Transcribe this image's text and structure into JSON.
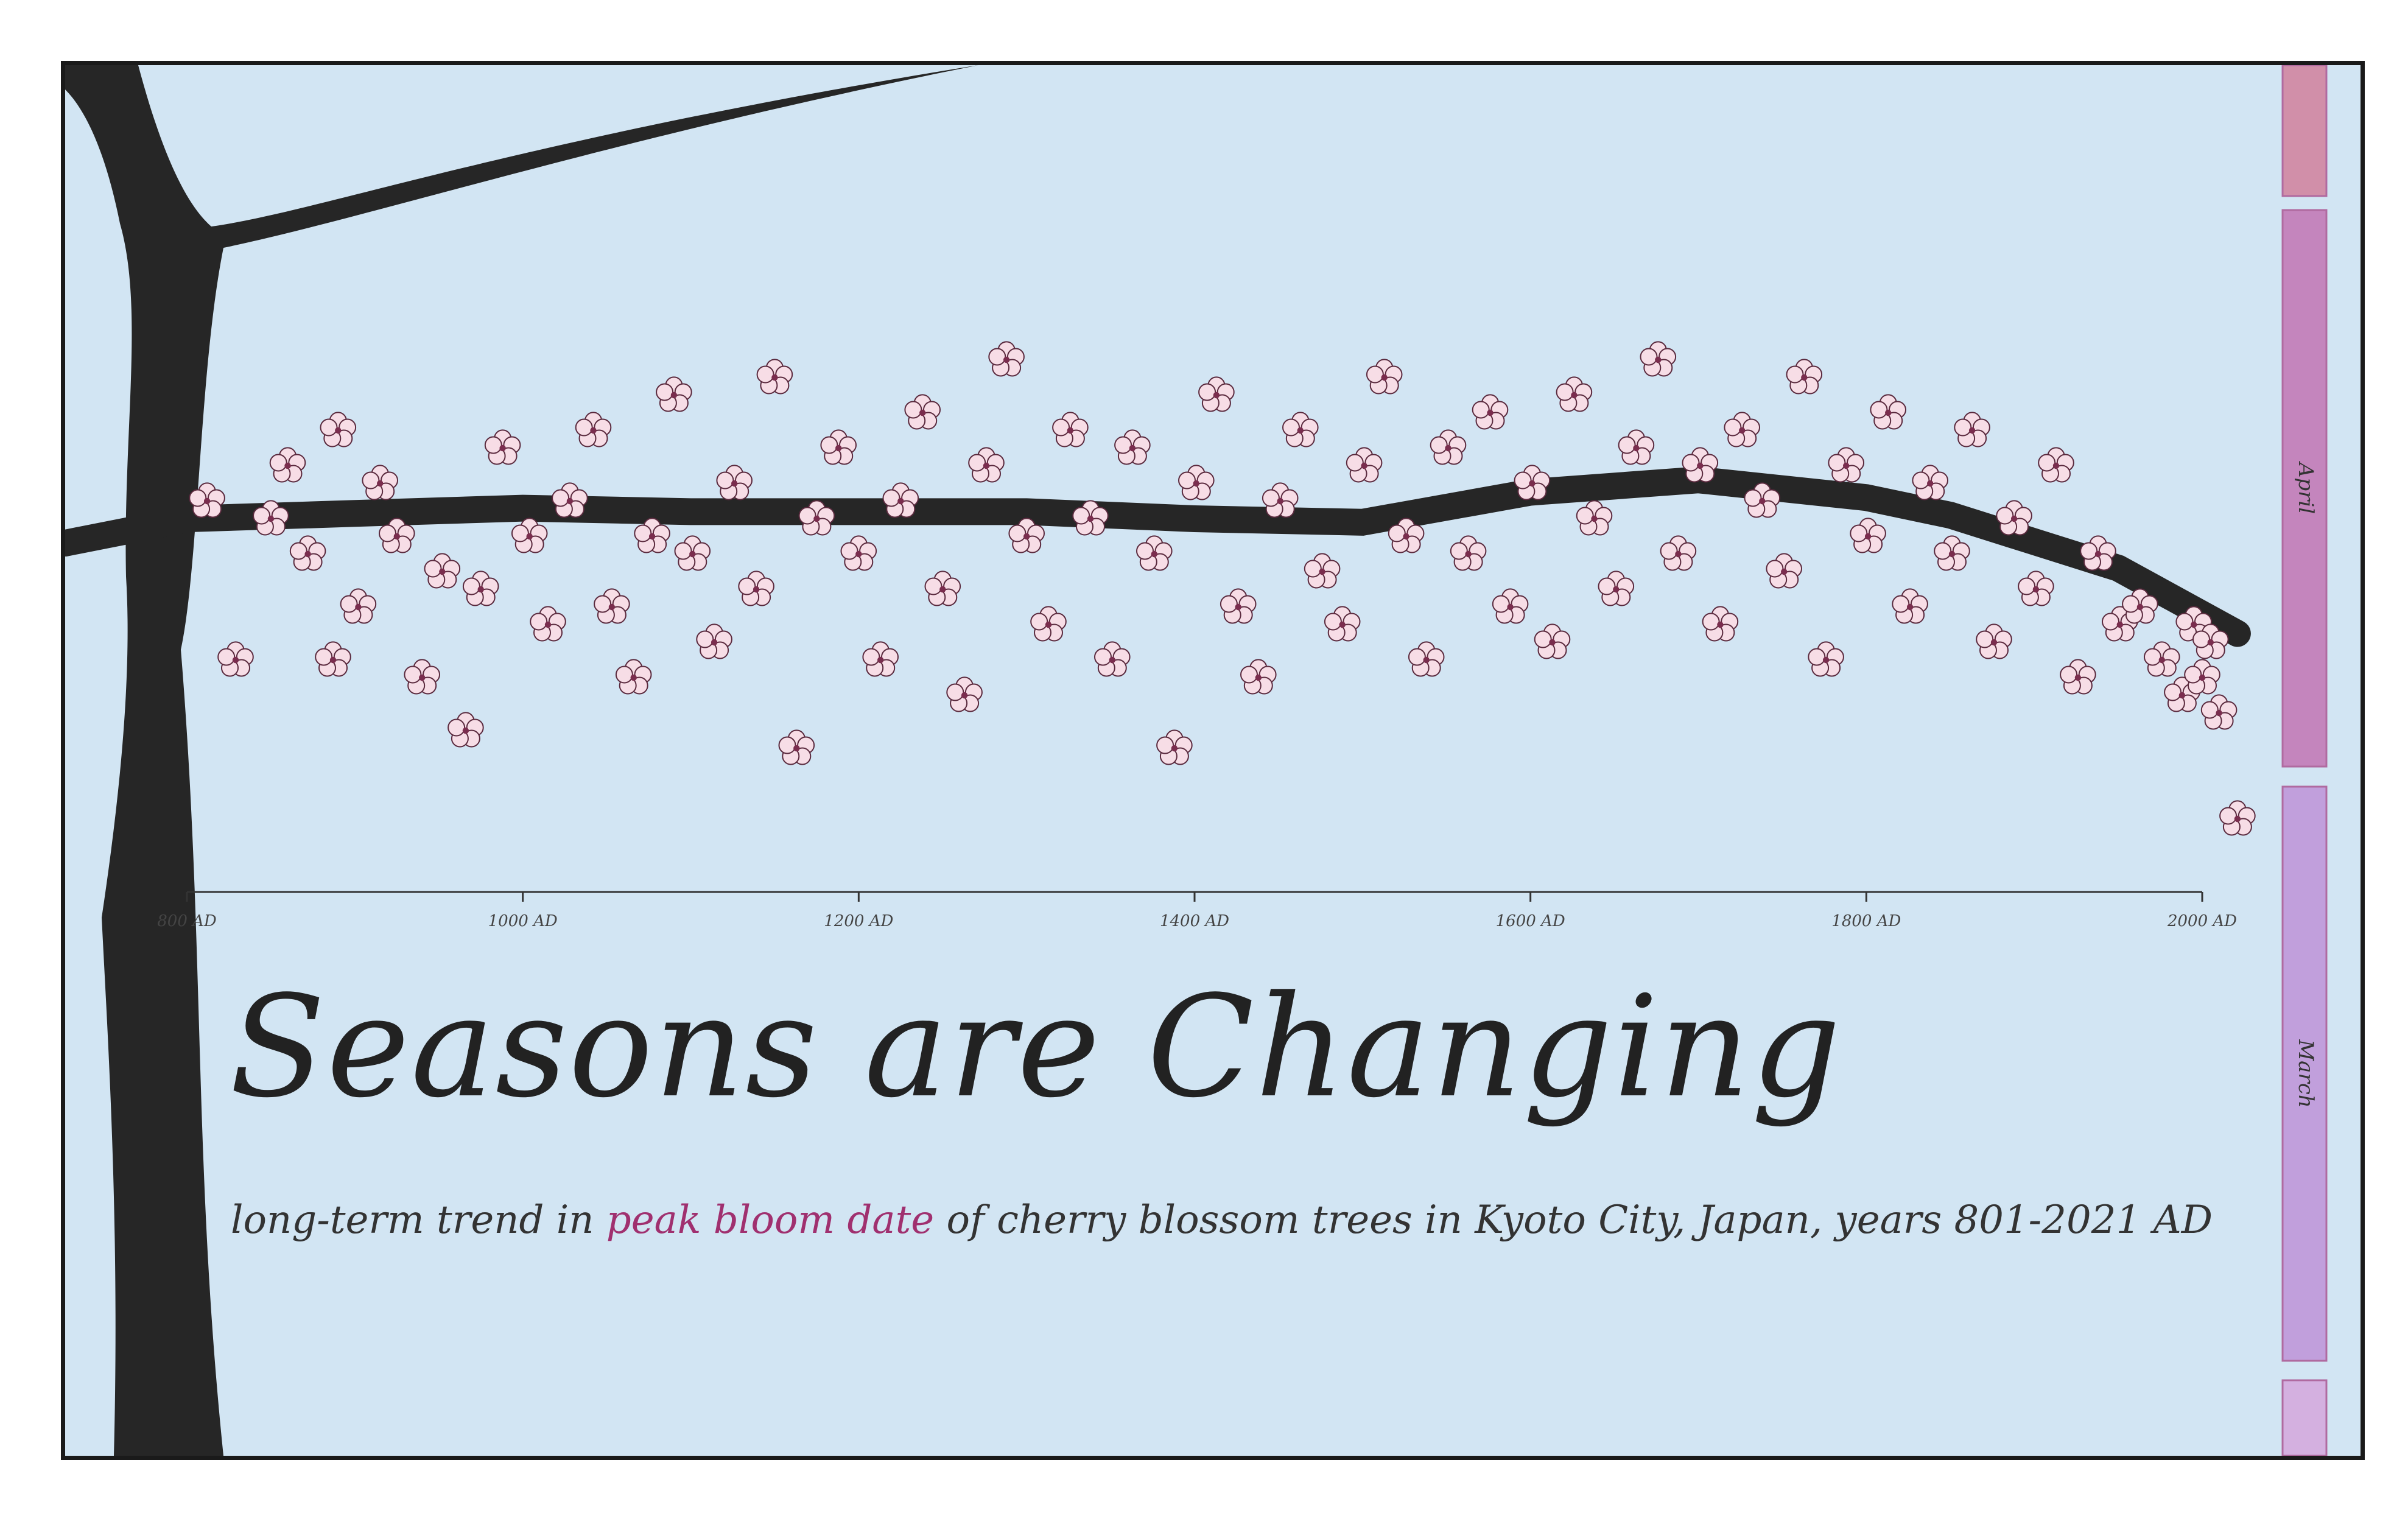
{
  "chart_data": {
    "type": "scatter",
    "title": "Seasons are Changing",
    "subtitle": {
      "before": "long-term trend in ",
      "highlight": "peak bloom date",
      "after": " of cherry blossom trees in Kyoto City, Japan, years 801-2021 AD"
    },
    "x_ticks": [
      "800 AD",
      "1000 AD",
      "1200 AD",
      "1400 AD",
      "1600 AD",
      "1800 AD",
      "2000 AD"
    ],
    "x_tick_values": [
      800,
      1000,
      1200,
      1400,
      1600,
      1800,
      2000
    ],
    "xlim": [
      800,
      2021
    ],
    "ylim": [
      70,
      140
    ],
    "y_note": "day of year; earlier dates lower on chart",
    "month_bands": [
      {
        "label": "",
        "from": 120,
        "to": 140,
        "color": "#d18fa9"
      },
      {
        "label": "April",
        "from": 91,
        "to": 120,
        "color": "#c485bd"
      },
      {
        "label": "March",
        "from": 60,
        "to": 91,
        "color": "#c19fdc"
      },
      {
        "label": "",
        "from": 32,
        "to": 60,
        "color": "#d4b0e0"
      }
    ],
    "trend": {
      "x": [
        801,
        900,
        1000,
        1100,
        1200,
        1300,
        1400,
        1500,
        1600,
        1700,
        1800,
        1850,
        1900,
        1950,
        2021
      ],
      "y": [
        105.0,
        105.3,
        105.6,
        105.4,
        105.4,
        105.4,
        105.0,
        104.8,
        106.5,
        107.2,
        106.2,
        105.2,
        103.7,
        102.2,
        98.5
      ]
    },
    "series": [
      {
        "values": [
          [
            812,
            106
          ],
          [
            829,
            97
          ],
          [
            850,
            105
          ],
          [
            860,
            108
          ],
          [
            872,
            103
          ],
          [
            887,
            97
          ],
          [
            890,
            110
          ],
          [
            902,
            100
          ],
          [
            915,
            107
          ],
          [
            925,
            104
          ],
          [
            940,
            96
          ],
          [
            952,
            102
          ],
          [
            966,
            93
          ],
          [
            975,
            101
          ],
          [
            988,
            109
          ],
          [
            1004,
            104
          ],
          [
            1015,
            99
          ],
          [
            1028,
            106
          ],
          [
            1042,
            110
          ],
          [
            1053,
            100
          ],
          [
            1066,
            96
          ],
          [
            1077,
            104
          ],
          [
            1090,
            112
          ],
          [
            1101,
            103
          ],
          [
            1114,
            98
          ],
          [
            1126,
            107
          ],
          [
            1139,
            101
          ],
          [
            1150,
            113
          ],
          [
            1163,
            92
          ],
          [
            1175,
            105
          ],
          [
            1188,
            109
          ],
          [
            1200,
            103
          ],
          [
            1213,
            97
          ],
          [
            1225,
            106
          ],
          [
            1238,
            111
          ],
          [
            1250,
            101
          ],
          [
            1263,
            95
          ],
          [
            1276,
            108
          ],
          [
            1288,
            114
          ],
          [
            1300,
            104
          ],
          [
            1313,
            99
          ],
          [
            1326,
            110
          ],
          [
            1338,
            105
          ],
          [
            1351,
            97
          ],
          [
            1363,
            109
          ],
          [
            1376,
            103
          ],
          [
            1388,
            92
          ],
          [
            1401,
            107
          ],
          [
            1413,
            112
          ],
          [
            1426,
            100
          ],
          [
            1438,
            96
          ],
          [
            1451,
            106
          ],
          [
            1463,
            110
          ],
          [
            1476,
            102
          ],
          [
            1488,
            99
          ],
          [
            1501,
            108
          ],
          [
            1513,
            113
          ],
          [
            1526,
            104
          ],
          [
            1538,
            97
          ],
          [
            1551,
            109
          ],
          [
            1563,
            103
          ],
          [
            1576,
            111
          ],
          [
            1588,
            100
          ],
          [
            1601,
            107
          ],
          [
            1613,
            98
          ],
          [
            1626,
            112
          ],
          [
            1638,
            105
          ],
          [
            1651,
            101
          ],
          [
            1663,
            109
          ],
          [
            1676,
            114
          ],
          [
            1688,
            103
          ],
          [
            1701,
            108
          ],
          [
            1713,
            99
          ],
          [
            1726,
            110
          ],
          [
            1738,
            106
          ],
          [
            1751,
            102
          ],
          [
            1763,
            113
          ],
          [
            1776,
            97
          ],
          [
            1788,
            108
          ],
          [
            1801,
            104
          ],
          [
            1813,
            111
          ],
          [
            1826,
            100
          ],
          [
            1838,
            107
          ],
          [
            1851,
            103
          ],
          [
            1863,
            110
          ],
          [
            1876,
            98
          ],
          [
            1888,
            105
          ],
          [
            1901,
            101
          ],
          [
            1913,
            108
          ],
          [
            1926,
            96
          ],
          [
            1938,
            103
          ],
          [
            1951,
            99
          ],
          [
            1963,
            100
          ],
          [
            1976,
            97
          ],
          [
            1988,
            95
          ],
          [
            1995,
            99
          ],
          [
            2000,
            96
          ],
          [
            2005,
            98
          ],
          [
            2010,
            94
          ],
          [
            2021,
            88
          ]
        ]
      }
    ]
  }
}
